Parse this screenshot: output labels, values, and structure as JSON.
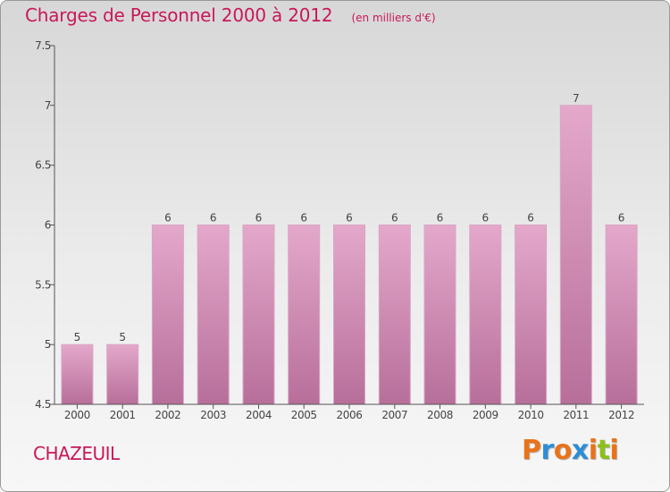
{
  "header": {
    "title": "Charges de Personnel 2000 à 2012",
    "subtitle": "(en milliers d'€)"
  },
  "footer": {
    "place": "CHAZEUIL",
    "brand": "Proxiti"
  },
  "colors": {
    "accent": "#c8185a",
    "bar_top": "#e4a8cb",
    "bar_bottom": "#b76f9a",
    "brand_letters": [
      "#e8731a",
      "#2d8ed6",
      "#e8731a",
      "#2d8ed6",
      "#e8731a",
      "#8fbf1e",
      "#e8731a"
    ]
  },
  "chart_data": {
    "type": "bar",
    "title": "Charges de Personnel 2000 à 2012",
    "subtitle": "(en milliers d'€)",
    "xlabel": "",
    "ylabel": "",
    "categories": [
      "2000",
      "2001",
      "2002",
      "2003",
      "2004",
      "2005",
      "2006",
      "2007",
      "2008",
      "2009",
      "2010",
      "2011",
      "2012"
    ],
    "values": [
      5,
      5,
      6,
      6,
      6,
      6,
      6,
      6,
      6,
      6,
      6,
      7,
      6
    ],
    "data_labels": [
      "5",
      "5",
      "6",
      "6",
      "6",
      "6",
      "6",
      "6",
      "6",
      "6",
      "6",
      "7",
      "6"
    ],
    "ylim": [
      4.5,
      7.5
    ],
    "yticks": [
      4.5,
      5,
      5.5,
      6,
      6.5,
      7,
      7.5
    ],
    "ytick_labels": [
      "4.5",
      "5",
      "5.5",
      "6",
      "6.5",
      "7",
      "7.5"
    ],
    "grid": false,
    "legend": "none"
  }
}
